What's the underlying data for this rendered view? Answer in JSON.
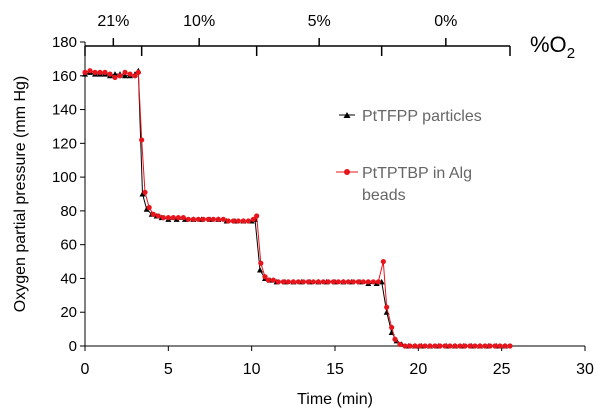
{
  "chart_data": {
    "type": "line",
    "xlabel": "Time (min)",
    "ylabel": "Oxygen partial pressure (mm Hg)",
    "xlim": [
      0,
      30
    ],
    "ylim": [
      0,
      180
    ],
    "x_ticks": [
      "0",
      "5",
      "10",
      "15",
      "20",
      "25",
      "30"
    ],
    "y_ticks": [
      "0",
      "20",
      "40",
      "60",
      "80",
      "100",
      "120",
      "140",
      "160",
      "180"
    ],
    "grid": false,
    "legend_position": "right",
    "o2_bracket": {
      "label_main": "%O",
      "label_sub": "2",
      "segments": [
        {
          "label": "21%",
          "start": 0,
          "end": 3.4
        },
        {
          "label": "10%",
          "start": 3.4,
          "end": 10.3
        },
        {
          "label": "5%",
          "start": 10.3,
          "end": 17.8
        },
        {
          "label": "0%",
          "start": 17.8,
          "end": 25.5
        }
      ]
    },
    "series": [
      {
        "name": "PtTFPP particles",
        "color": "#000000",
        "marker": "triangle",
        "x": [
          0,
          0.3,
          0.6,
          0.9,
          1.2,
          1.5,
          1.8,
          2.1,
          2.4,
          2.7,
          3.0,
          3.2,
          3.45,
          3.7,
          4.0,
          4.3,
          4.6,
          5.0,
          5.5,
          6.0,
          6.5,
          7.0,
          7.5,
          8.0,
          8.5,
          9.0,
          9.5,
          10.0,
          10.2,
          10.5,
          10.8,
          11.1,
          11.5,
          12.0,
          12.5,
          13.0,
          13.5,
          14.0,
          14.5,
          15.0,
          15.5,
          16.0,
          16.5,
          17.0,
          17.5,
          17.8,
          18.1,
          18.4,
          18.7,
          19.0,
          19.4,
          19.8,
          20.2,
          20.7,
          21.2,
          21.7,
          22.2,
          22.7,
          23.2,
          23.7,
          24.2,
          24.7,
          25.2
        ],
        "y": [
          161,
          162,
          161,
          161,
          161,
          160,
          161,
          161,
          160,
          160,
          161,
          163,
          90,
          81,
          78,
          77,
          76,
          75,
          75,
          75,
          75,
          75,
          75,
          75,
          74,
          74,
          74,
          74,
          75,
          45,
          40,
          39,
          38,
          38,
          38,
          38,
          38,
          38,
          38,
          38,
          38,
          38,
          38,
          37,
          37,
          38,
          20,
          8,
          3,
          1,
          0,
          0,
          0,
          0,
          0,
          0,
          0,
          0,
          0,
          0,
          0,
          0,
          0
        ]
      },
      {
        "name": "PtTPTBP in Alg beads",
        "color": "#e8141c",
        "marker": "circle",
        "x": [
          0,
          0.3,
          0.6,
          0.9,
          1.2,
          1.5,
          1.8,
          2.1,
          2.4,
          2.7,
          3.0,
          3.2,
          3.4,
          3.6,
          3.85,
          4.1,
          4.4,
          4.7,
          5.0,
          5.3,
          5.6,
          5.9,
          6.2,
          6.5,
          6.8,
          7.1,
          7.4,
          7.7,
          8.0,
          8.3,
          8.6,
          8.9,
          9.2,
          9.5,
          9.8,
          10.1,
          10.3,
          10.55,
          10.8,
          11.0,
          11.3,
          11.6,
          11.9,
          12.2,
          12.5,
          12.8,
          13.1,
          13.4,
          13.7,
          14.0,
          14.3,
          14.6,
          14.9,
          15.2,
          15.5,
          15.8,
          16.1,
          16.4,
          16.7,
          17.0,
          17.3,
          17.6,
          17.9,
          18.1,
          18.4,
          18.6,
          18.9,
          19.2,
          19.5,
          19.8,
          20.1,
          20.4,
          20.7,
          21.0,
          21.3,
          21.6,
          21.9,
          22.2,
          22.5,
          22.8,
          23.1,
          23.4,
          23.7,
          24.0,
          24.3,
          24.6,
          24.9,
          25.2,
          25.5
        ],
        "y": [
          162,
          163,
          162,
          162,
          162,
          161,
          159,
          160,
          162,
          161,
          160,
          162,
          122,
          91,
          82,
          78,
          77,
          76,
          76,
          76,
          76,
          76,
          75,
          75,
          75,
          75,
          75,
          75,
          75,
          75,
          74,
          74,
          74,
          74,
          74,
          75,
          77,
          49,
          41,
          39,
          39,
          38,
          38,
          38,
          38,
          38,
          38,
          38,
          38,
          38,
          38,
          38,
          38,
          38,
          38,
          38,
          38,
          38,
          38,
          38,
          38,
          38,
          50,
          23,
          11,
          4,
          1,
          0,
          0,
          0,
          0,
          0,
          0,
          0,
          0,
          0,
          0,
          0,
          0,
          0,
          0,
          0,
          0,
          0,
          0,
          0,
          0,
          0,
          0
        ]
      }
    ]
  }
}
